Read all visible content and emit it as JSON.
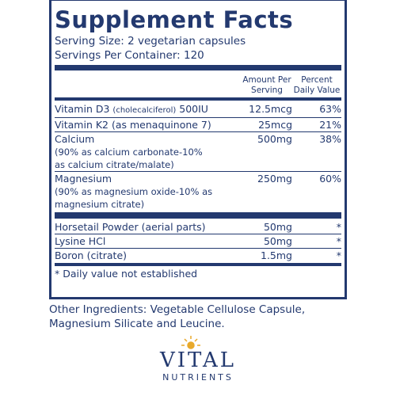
{
  "header": {
    "title": "Supplement Facts",
    "serving_size": "Serving Size: 2 vegetarian capsules",
    "servings_per_container": "Servings Per Container: 120"
  },
  "columns": {
    "amount": "Amount Per Serving",
    "daily_value": "Percent Daily Value"
  },
  "rows": [
    {
      "name": "Vitamin D3",
      "note": "(cholecalciferol)",
      "suffix": "500IU",
      "amount": "12.5mcg",
      "daily_value": "63%"
    },
    {
      "name": "Vitamin K2 (as menaquinone 7)",
      "amount": "25mcg",
      "daily_value": "21%"
    },
    {
      "name": "Calcium",
      "detail": "(90% as calcium carbonate-10% as calcium citrate/malate)",
      "amount": "500mg",
      "daily_value": "38%"
    },
    {
      "name": "Magnesium",
      "detail": "(90% as magnesium oxide-10% as magnesium citrate)",
      "amount": "250mg",
      "daily_value": "60%"
    }
  ],
  "other_rows": [
    {
      "name": "Horsetail Powder (aerial parts)",
      "amount": "50mg",
      "daily_value": "*"
    },
    {
      "name": "Lysine HCl",
      "amount": "50mg",
      "daily_value": "*"
    },
    {
      "name": "Boron (citrate)",
      "amount": "1.5mg",
      "daily_value": "*"
    }
  ],
  "footnote": "* Daily value not established",
  "other_ingredients": "Other Ingredients: Vegetable Cellulose Capsule, Magnesium Silicate and Leucine.",
  "logo": {
    "brand": "VITAL",
    "tagline": "NUTRIENTS"
  }
}
